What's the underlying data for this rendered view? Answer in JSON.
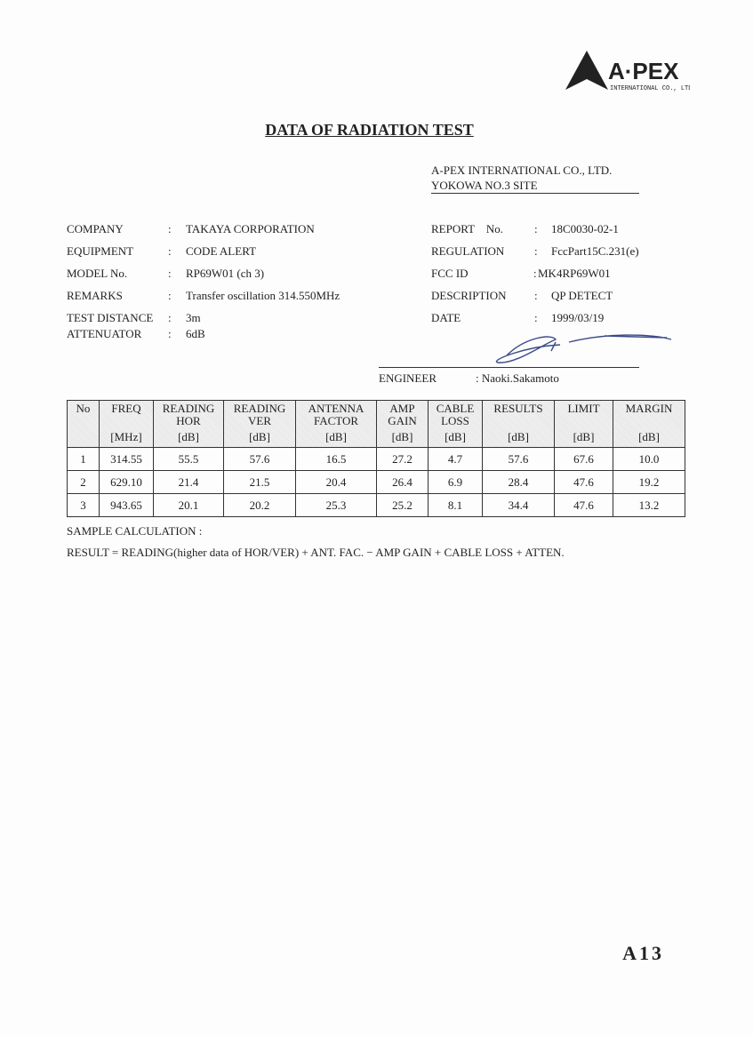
{
  "logo": {
    "text": "A·PEX",
    "subtext": "INTERNATIONAL CO., LTD."
  },
  "title": "DATA OF RADIATION TEST",
  "lab": {
    "name": "A-PEX INTERNATIONAL CO., LTD.",
    "site": "YOKOWA NO.3 SITE"
  },
  "left_fields": [
    {
      "label": "COMPANY",
      "value": "TAKAYA CORPORATION"
    },
    {
      "label": "EQUIPMENT",
      "value": "CODE ALERT"
    },
    {
      "label": "MODEL No.",
      "value": "RP69W01 (ch 3)"
    },
    {
      "label": "REMARKS",
      "value": "Transfer oscillation 314.550MHz"
    },
    {
      "label": "TEST DISTANCE",
      "value": "3m"
    },
    {
      "label": "ATTENUATOR",
      "value": "6dB"
    }
  ],
  "right_fields": [
    {
      "label": "REPORT    No.",
      "value": "18C0030-02-1"
    },
    {
      "label": "REGULATION",
      "value": "FccPart15C.231(e)"
    },
    {
      "label": "FCC ID",
      "value": "MK4RP69W01"
    },
    {
      "label": "DESCRIPTION",
      "value": "QP DETECT"
    },
    {
      "label": "DATE",
      "value": "1999/03/19"
    }
  ],
  "engineer": {
    "label": "ENGINEER",
    "value": ": Naoki.Sakamoto"
  },
  "table": {
    "headers": [
      {
        "name": "No",
        "unit": ""
      },
      {
        "name": "FREQ",
        "unit": "[MHz]"
      },
      {
        "name": "READING HOR",
        "unit": "[dB]"
      },
      {
        "name": "READING VER",
        "unit": "[dB]"
      },
      {
        "name": "ANTENNA FACTOR",
        "unit": "[dB]"
      },
      {
        "name": "AMP GAIN",
        "unit": "[dB]"
      },
      {
        "name": "CABLE LOSS",
        "unit": "[dB]"
      },
      {
        "name": "RESULTS",
        "unit": "[dB]"
      },
      {
        "name": "LIMIT",
        "unit": "[dB]"
      },
      {
        "name": "MARGIN",
        "unit": "[dB]"
      }
    ],
    "rows": [
      [
        "1",
        "314.55",
        "55.5",
        "57.6",
        "16.5",
        "27.2",
        "4.7",
        "57.6",
        "67.6",
        "10.0"
      ],
      [
        "2",
        "629.10",
        "21.4",
        "21.5",
        "20.4",
        "26.4",
        "6.9",
        "28.4",
        "47.6",
        "19.2"
      ],
      [
        "3",
        "943.65",
        "20.1",
        "20.2",
        "25.3",
        "25.2",
        "8.1",
        "34.4",
        "47.6",
        "13.2"
      ]
    ]
  },
  "sample_calc": {
    "label": "SAMPLE CALCULATION    :",
    "formula": "RESULT = READING(higher data of HOR/VER)  +  ANT. FAC.  −  AMP GAIN + CABLE LOSS + ATTEN."
  },
  "page_number": "A13"
}
